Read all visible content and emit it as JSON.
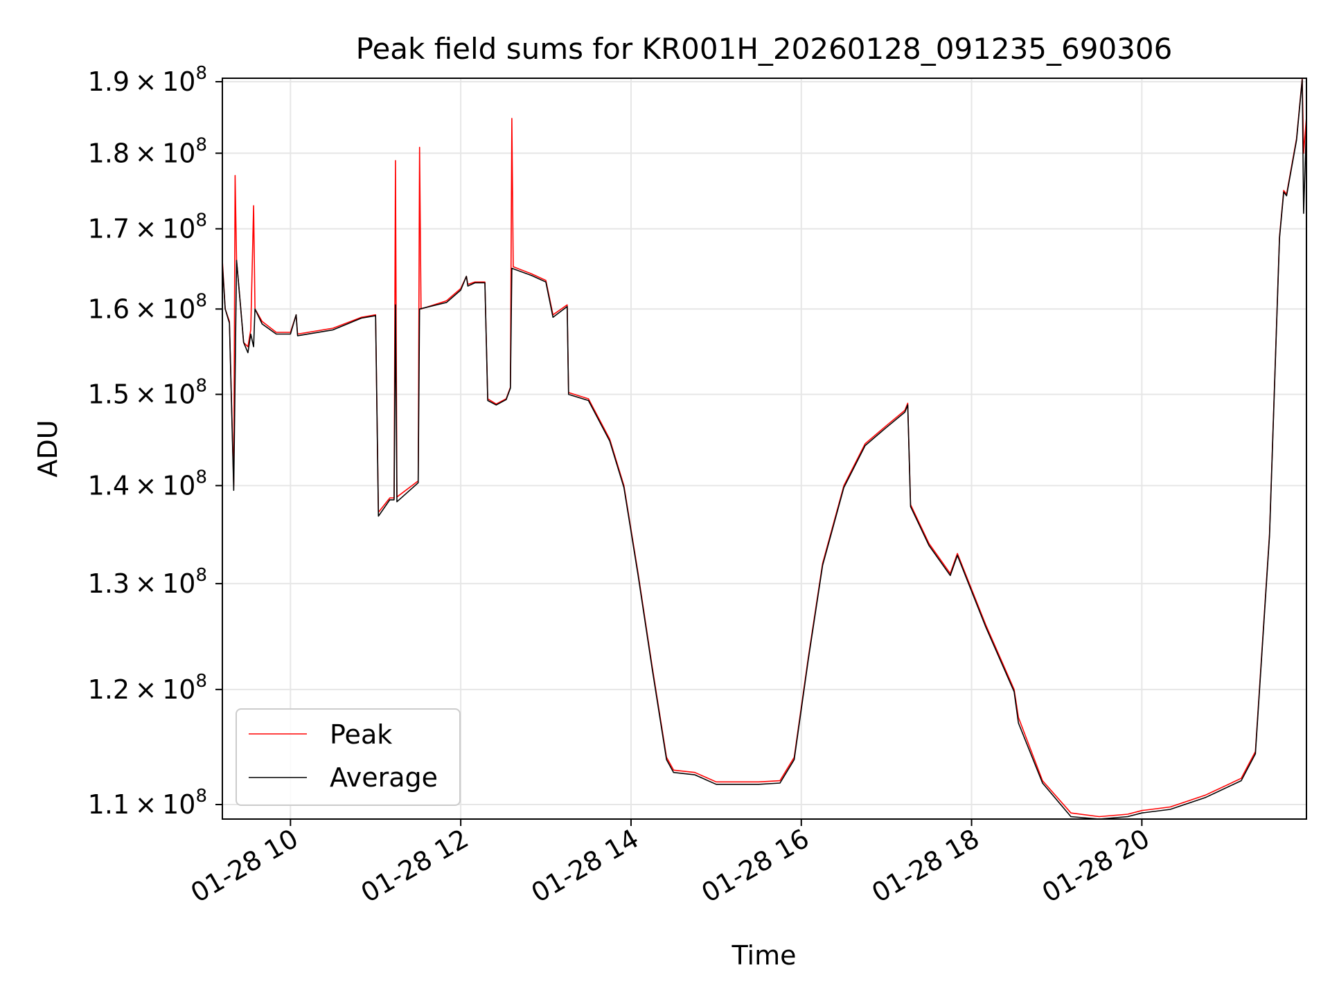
{
  "chart_data": {
    "type": "line",
    "title": "Peak field sums for KR001H_20260128_091235_690306",
    "xlabel": "Time",
    "ylabel": "ADU",
    "yscale": "log",
    "xlim": [
      "2026-01-28 09:12",
      "2026-01-28 21:56"
    ],
    "ylim": [
      108800000,
      190500000
    ],
    "grid": true,
    "legend_position": "lower-left",
    "x_ticks": [
      "2026-01-28 10:00",
      "2026-01-28 12:00",
      "2026-01-28 14:00",
      "2026-01-28 16:00",
      "2026-01-28 18:00",
      "2026-01-28 20:00"
    ],
    "x_tick_labels": [
      "01-28 10",
      "01-28 12",
      "01-28 14",
      "01-28 16",
      "01-28 18",
      "01-28 20"
    ],
    "y_ticks": [
      110000000,
      120000000,
      130000000,
      140000000,
      150000000,
      160000000,
      170000000,
      180000000,
      190000000
    ],
    "y_tick_labels": [
      {
        "mantissa": "1.1",
        "times": "×",
        "base": "10",
        "exp": "8"
      },
      {
        "mantissa": "1.2",
        "times": "×",
        "base": "10",
        "exp": "8"
      },
      {
        "mantissa": "1.3",
        "times": "×",
        "base": "10",
        "exp": "8"
      },
      {
        "mantissa": "1.4",
        "times": "×",
        "base": "10",
        "exp": "8"
      },
      {
        "mantissa": "1.5",
        "times": "×",
        "base": "10",
        "exp": "8"
      },
      {
        "mantissa": "1.6",
        "times": "×",
        "base": "10",
        "exp": "8"
      },
      {
        "mantissa": "1.7",
        "times": "×",
        "base": "10",
        "exp": "8"
      },
      {
        "mantissa": "1.8",
        "times": "×",
        "base": "10",
        "exp": "8"
      },
      {
        "mantissa": "1.9",
        "times": "×",
        "base": "10",
        "exp": "8"
      }
    ],
    "colors": {
      "peak": "#ff0000",
      "average": "#000000",
      "grid": "#e6e6e6"
    },
    "series": [
      {
        "name": "Peak",
        "color": "#ff0000",
        "points": [
          [
            "2026-01-28 09:12",
            166000000
          ],
          [
            "2026-01-28 09:14",
            160000000
          ],
          [
            "2026-01-28 09:17",
            158500000
          ],
          [
            "2026-01-28 09:20",
            140000000
          ],
          [
            "2026-01-28 09:21",
            177000000
          ],
          [
            "2026-01-28 09:22",
            166000000
          ],
          [
            "2026-01-28 09:25",
            160000000
          ],
          [
            "2026-01-28 09:27",
            156000000
          ],
          [
            "2026-01-28 09:30",
            155500000
          ],
          [
            "2026-01-28 09:32",
            157500000
          ],
          [
            "2026-01-28 09:34",
            173000000
          ],
          [
            "2026-01-28 09:35",
            160000000
          ],
          [
            "2026-01-28 09:40",
            158500000
          ],
          [
            "2026-01-28 09:50",
            157200000
          ],
          [
            "2026-01-28 10:00",
            157200000
          ],
          [
            "2026-01-28 10:04",
            159300000
          ],
          [
            "2026-01-28 10:05",
            157000000
          ],
          [
            "2026-01-28 10:30",
            157700000
          ],
          [
            "2026-01-28 10:50",
            159000000
          ],
          [
            "2026-01-28 11:00",
            159300000
          ],
          [
            "2026-01-28 11:02",
            137200000
          ],
          [
            "2026-01-28 11:10",
            138700000
          ],
          [
            "2026-01-28 11:13",
            138700000
          ],
          [
            "2026-01-28 11:14",
            179000000
          ],
          [
            "2026-01-28 11:15",
            138800000
          ],
          [
            "2026-01-28 11:30",
            140500000
          ],
          [
            "2026-01-28 11:31",
            180800000
          ],
          [
            "2026-01-28 11:32",
            160000000
          ],
          [
            "2026-01-28 11:50",
            161000000
          ],
          [
            "2026-01-28 12:00",
            162500000
          ],
          [
            "2026-01-28 12:04",
            164000000
          ],
          [
            "2026-01-28 12:05",
            163000000
          ],
          [
            "2026-01-28 12:10",
            163300000
          ],
          [
            "2026-01-28 12:17",
            163300000
          ],
          [
            "2026-01-28 12:19",
            149500000
          ],
          [
            "2026-01-28 12:25",
            148900000
          ],
          [
            "2026-01-28 12:32",
            149500000
          ],
          [
            "2026-01-28 12:35",
            150800000
          ],
          [
            "2026-01-28 12:36",
            184800000
          ],
          [
            "2026-01-28 12:37",
            165200000
          ],
          [
            "2026-01-28 12:50",
            164300000
          ],
          [
            "2026-01-28 13:00",
            163500000
          ],
          [
            "2026-01-28 13:05",
            159300000
          ],
          [
            "2026-01-28 13:15",
            160500000
          ],
          [
            "2026-01-28 13:16",
            150200000
          ],
          [
            "2026-01-28 13:30",
            149500000
          ],
          [
            "2026-01-28 13:45",
            145000000
          ],
          [
            "2026-01-28 13:55",
            140000000
          ],
          [
            "2026-01-28 14:05",
            131000000
          ],
          [
            "2026-01-28 14:15",
            122000000
          ],
          [
            "2026-01-28 14:25",
            114000000
          ],
          [
            "2026-01-28 14:30",
            112900000
          ],
          [
            "2026-01-28 14:45",
            112700000
          ],
          [
            "2026-01-28 15:00",
            111900000
          ],
          [
            "2026-01-28 15:30",
            111900000
          ],
          [
            "2026-01-28 15:45",
            112000000
          ],
          [
            "2026-01-28 15:55",
            114000000
          ],
          [
            "2026-01-28 16:05",
            123000000
          ],
          [
            "2026-01-28 16:15",
            132000000
          ],
          [
            "2026-01-28 16:30",
            140000000
          ],
          [
            "2026-01-28 16:45",
            144500000
          ],
          [
            "2026-01-28 17:00",
            146500000
          ],
          [
            "2026-01-28 17:13",
            148200000
          ],
          [
            "2026-01-28 17:15",
            149000000
          ],
          [
            "2026-01-28 17:17",
            138000000
          ],
          [
            "2026-01-28 17:30",
            134000000
          ],
          [
            "2026-01-28 17:45",
            131000000
          ],
          [
            "2026-01-28 17:50",
            133000000
          ],
          [
            "2026-01-28 18:10",
            126000000
          ],
          [
            "2026-01-28 18:30",
            120000000
          ],
          [
            "2026-01-28 18:33",
            117500000
          ],
          [
            "2026-01-28 18:50",
            112000000
          ],
          [
            "2026-01-28 19:10",
            109300000
          ],
          [
            "2026-01-28 19:30",
            109000000
          ],
          [
            "2026-01-28 19:50",
            109200000
          ],
          [
            "2026-01-28 20:00",
            109500000
          ],
          [
            "2026-01-28 20:20",
            109800000
          ],
          [
            "2026-01-28 20:45",
            110800000
          ],
          [
            "2026-01-28 21:10",
            112200000
          ],
          [
            "2026-01-28 21:20",
            114500000
          ],
          [
            "2026-01-28 21:30",
            135000000
          ],
          [
            "2026-01-28 21:37",
            169000000
          ],
          [
            "2026-01-28 21:40",
            175000000
          ],
          [
            "2026-01-28 21:42",
            174500000
          ],
          [
            "2026-01-28 21:49",
            182000000
          ],
          [
            "2026-01-28 21:53",
            190500000
          ],
          [
            "2026-01-28 21:54",
            180000000
          ],
          [
            "2026-01-28 21:56",
            185000000
          ]
        ]
      },
      {
        "name": "Average",
        "color": "#000000",
        "points": [
          [
            "2026-01-28 09:12",
            165500000
          ],
          [
            "2026-01-28 09:14",
            160000000
          ],
          [
            "2026-01-28 09:17",
            158300000
          ],
          [
            "2026-01-28 09:20",
            139500000
          ],
          [
            "2026-01-28 09:22",
            166000000
          ],
          [
            "2026-01-28 09:25",
            160000000
          ],
          [
            "2026-01-28 09:27",
            156000000
          ],
          [
            "2026-01-28 09:30",
            154800000
          ],
          [
            "2026-01-28 09:32",
            157000000
          ],
          [
            "2026-01-28 09:34",
            155500000
          ],
          [
            "2026-01-28 09:35",
            160000000
          ],
          [
            "2026-01-28 09:40",
            158200000
          ],
          [
            "2026-01-28 09:50",
            157000000
          ],
          [
            "2026-01-28 10:00",
            157000000
          ],
          [
            "2026-01-28 10:04",
            159300000
          ],
          [
            "2026-01-28 10:05",
            156800000
          ],
          [
            "2026-01-28 10:30",
            157500000
          ],
          [
            "2026-01-28 10:50",
            158900000
          ],
          [
            "2026-01-28 11:00",
            159200000
          ],
          [
            "2026-01-28 11:02",
            136800000
          ],
          [
            "2026-01-28 11:10",
            138500000
          ],
          [
            "2026-01-28 11:13",
            138500000
          ],
          [
            "2026-01-28 11:14",
            160500000
          ],
          [
            "2026-01-28 11:15",
            138300000
          ],
          [
            "2026-01-28 11:30",
            140300000
          ],
          [
            "2026-01-28 11:31",
            160000000
          ],
          [
            "2026-01-28 11:50",
            160800000
          ],
          [
            "2026-01-28 12:00",
            162300000
          ],
          [
            "2026-01-28 12:04",
            164000000
          ],
          [
            "2026-01-28 12:05",
            162800000
          ],
          [
            "2026-01-28 12:10",
            163200000
          ],
          [
            "2026-01-28 12:17",
            163200000
          ],
          [
            "2026-01-28 12:19",
            149300000
          ],
          [
            "2026-01-28 12:25",
            148800000
          ],
          [
            "2026-01-28 12:32",
            149400000
          ],
          [
            "2026-01-28 12:35",
            150700000
          ],
          [
            "2026-01-28 12:36",
            165000000
          ],
          [
            "2026-01-28 12:50",
            164100000
          ],
          [
            "2026-01-28 13:00",
            163300000
          ],
          [
            "2026-01-28 13:05",
            159000000
          ],
          [
            "2026-01-28 13:15",
            160300000
          ],
          [
            "2026-01-28 13:16",
            150000000
          ],
          [
            "2026-01-28 13:30",
            149300000
          ],
          [
            "2026-01-28 13:45",
            144800000
          ],
          [
            "2026-01-28 13:55",
            139800000
          ],
          [
            "2026-01-28 14:05",
            130800000
          ],
          [
            "2026-01-28 14:15",
            121800000
          ],
          [
            "2026-01-28 14:25",
            113800000
          ],
          [
            "2026-01-28 14:30",
            112700000
          ],
          [
            "2026-01-28 14:45",
            112500000
          ],
          [
            "2026-01-28 15:00",
            111700000
          ],
          [
            "2026-01-28 15:30",
            111700000
          ],
          [
            "2026-01-28 15:45",
            111800000
          ],
          [
            "2026-01-28 15:55",
            113800000
          ],
          [
            "2026-01-28 16:05",
            122800000
          ],
          [
            "2026-01-28 16:15",
            131800000
          ],
          [
            "2026-01-28 16:30",
            139800000
          ],
          [
            "2026-01-28 16:45",
            144300000
          ],
          [
            "2026-01-28 17:00",
            146300000
          ],
          [
            "2026-01-28 17:13",
            148000000
          ],
          [
            "2026-01-28 17:15",
            148800000
          ],
          [
            "2026-01-28 17:17",
            137800000
          ],
          [
            "2026-01-28 17:30",
            133800000
          ],
          [
            "2026-01-28 17:45",
            130800000
          ],
          [
            "2026-01-28 17:50",
            132800000
          ],
          [
            "2026-01-28 18:10",
            125800000
          ],
          [
            "2026-01-28 18:30",
            119800000
          ],
          [
            "2026-01-28 18:33",
            117000000
          ],
          [
            "2026-01-28 18:50",
            111800000
          ],
          [
            "2026-01-28 19:10",
            109000000
          ],
          [
            "2026-01-28 19:30",
            108800000
          ],
          [
            "2026-01-28 19:50",
            109000000
          ],
          [
            "2026-01-28 20:00",
            109300000
          ],
          [
            "2026-01-28 20:20",
            109600000
          ],
          [
            "2026-01-28 20:45",
            110600000
          ],
          [
            "2026-01-28 21:10",
            112000000
          ],
          [
            "2026-01-28 21:20",
            114300000
          ],
          [
            "2026-01-28 21:30",
            134800000
          ],
          [
            "2026-01-28 21:37",
            168800000
          ],
          [
            "2026-01-28 21:40",
            174800000
          ],
          [
            "2026-01-28 21:42",
            174300000
          ],
          [
            "2026-01-28 21:49",
            181800000
          ],
          [
            "2026-01-28 21:53",
            190300000
          ],
          [
            "2026-01-28 21:54",
            172000000
          ],
          [
            "2026-01-28 21:56",
            184000000
          ]
        ]
      }
    ]
  }
}
